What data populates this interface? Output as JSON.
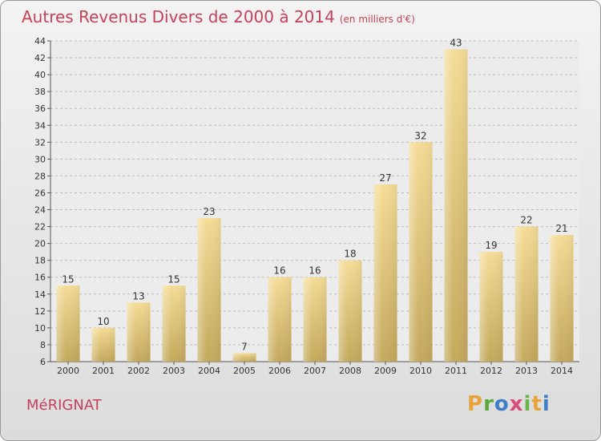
{
  "header": {
    "title": "Autres Revenus Divers de 2000 à 2014",
    "subtitle": "(en milliers d'€)"
  },
  "footer": {
    "city": "MéRIGNAT"
  },
  "logo": {
    "letters": [
      "P",
      "r",
      "o",
      "x",
      "i",
      "t",
      "i"
    ],
    "colors": [
      "#e8a43a",
      "#5aa83e",
      "#3f7fc8",
      "#d94b7b",
      "#6cb34a",
      "#e8a43a",
      "#3f7fc8"
    ]
  },
  "colors": {
    "title": "#c4425a",
    "bar_light": "#f5dc96",
    "bar_dark": "#c4a85c"
  },
  "chart_data": {
    "type": "bar",
    "categories": [
      "2000",
      "2001",
      "2002",
      "2003",
      "2004",
      "2005",
      "2006",
      "2007",
      "2008",
      "2009",
      "2010",
      "2011",
      "2012",
      "2013",
      "2014"
    ],
    "values": [
      15,
      10,
      13,
      15,
      23,
      7,
      16,
      16,
      18,
      27,
      32,
      43,
      19,
      22,
      21
    ],
    "ylim": [
      6,
      44
    ],
    "yticks": [
      6,
      8,
      10,
      12,
      14,
      16,
      18,
      20,
      22,
      24,
      26,
      28,
      30,
      32,
      34,
      36,
      38,
      40,
      42,
      44
    ],
    "grid": true,
    "legend": "none"
  }
}
